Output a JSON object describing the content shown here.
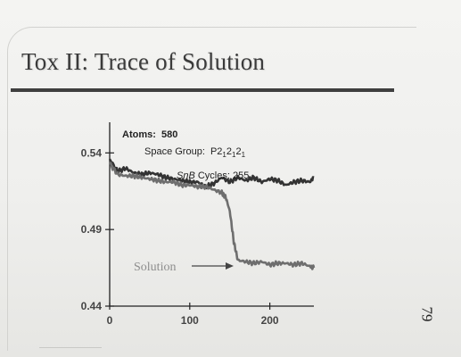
{
  "slide": {
    "title": "Tox II: Trace of Solution",
    "page_number": "79"
  },
  "chart_data": {
    "type": "line",
    "title": "",
    "xlabel": "",
    "ylabel": "",
    "xlim": [
      0,
      255
    ],
    "ylim": [
      0.44,
      0.56
    ],
    "x_ticks": [
      0,
      100,
      200
    ],
    "x_tick_labels": [
      "0",
      "100",
      "200"
    ],
    "y_ticks": [
      0.44,
      0.49,
      0.54
    ],
    "y_tick_labels": [
      "0.44",
      "0.49",
      "0.54"
    ],
    "grid": false,
    "legend": "none",
    "annotations": {
      "atoms_label": "Atoms:",
      "atoms_value": "580",
      "space_group_label": "Space Group:",
      "space_group_p": "P2",
      "space_group_sub": "1",
      "space_group_2": "2",
      "snb_italic": "SnB",
      "cycles_label": " Cycles: 255",
      "solution_label": "Solution"
    },
    "series": [
      {
        "color": "#333333",
        "x": [
          0,
          10,
          20,
          30,
          40,
          50,
          60,
          70,
          80,
          90,
          100,
          110,
          120,
          130,
          140,
          150,
          160,
          170,
          180,
          190,
          200,
          210,
          220,
          230,
          240,
          250,
          255
        ],
        "y": [
          0.536,
          0.528,
          0.53,
          0.527,
          0.526,
          0.527,
          0.526,
          0.524,
          0.523,
          0.522,
          0.521,
          0.521,
          0.518,
          0.52,
          0.524,
          0.521,
          0.524,
          0.522,
          0.524,
          0.521,
          0.523,
          0.522,
          0.519,
          0.521,
          0.522,
          0.521,
          0.524
        ]
      },
      {
        "color": "#6e6e6e",
        "x": [
          0,
          10,
          20,
          30,
          40,
          50,
          60,
          70,
          80,
          90,
          100,
          110,
          120,
          130,
          140,
          145,
          150,
          155,
          160,
          170,
          180,
          190,
          200,
          210,
          220,
          230,
          240,
          250,
          255
        ],
        "y": [
          0.533,
          0.526,
          0.525,
          0.525,
          0.524,
          0.523,
          0.522,
          0.521,
          0.521,
          0.519,
          0.519,
          0.518,
          0.518,
          0.516,
          0.514,
          0.511,
          0.502,
          0.482,
          0.47,
          0.469,
          0.468,
          0.469,
          0.467,
          0.468,
          0.468,
          0.467,
          0.468,
          0.466,
          0.465
        ]
      }
    ]
  }
}
